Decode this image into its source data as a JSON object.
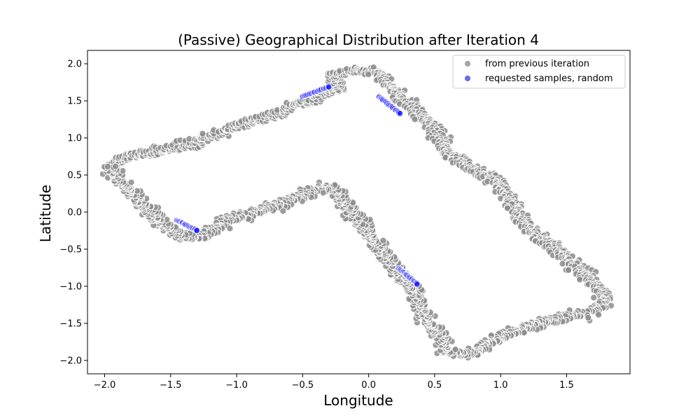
{
  "chart_data": {
    "type": "scatter",
    "title": "(Passive) Geographical Distribution after Iteration 4",
    "xlabel": "Longitude",
    "ylabel": "Latitude",
    "xlim": [
      -2.13,
      1.98
    ],
    "ylim": [
      -2.18,
      2.18
    ],
    "xticks": [
      -2.0,
      -1.5,
      -1.0,
      -0.5,
      0.0,
      0.5,
      1.0,
      1.5
    ],
    "xtick_labels": [
      "−2.0",
      "−1.5",
      "−1.0",
      "−0.5",
      "0.0",
      "0.5",
      "1.0",
      "1.5"
    ],
    "yticks": [
      2.0,
      1.5,
      1.0,
      0.5,
      0.0,
      -0.5,
      -1.0,
      -1.5,
      -2.0
    ],
    "ytick_labels": [
      "2.0",
      "1.5",
      "1.0",
      "0.5",
      "0.0",
      "−0.5",
      "−1.0",
      "−1.5",
      "−2.0"
    ],
    "grid": false,
    "legend_position": "top-right",
    "series": [
      {
        "name": "from previous iteration",
        "color": "#8c8c8c",
        "path": [
          [
            -1.95,
            0.62
          ],
          [
            -1.85,
            0.74
          ],
          [
            -1.6,
            0.82
          ],
          [
            -1.3,
            0.95
          ],
          [
            -1.0,
            1.16
          ],
          [
            -0.7,
            1.32
          ],
          [
            -0.4,
            1.55
          ],
          [
            -0.2,
            1.72
          ],
          [
            -0.3,
            1.85
          ],
          [
            -0.1,
            1.92
          ],
          [
            0.05,
            1.9
          ],
          [
            0.15,
            1.72
          ],
          [
            0.35,
            1.4
          ],
          [
            0.5,
            1.1
          ],
          [
            0.6,
            0.8
          ],
          [
            0.75,
            0.62
          ],
          [
            0.95,
            0.45
          ],
          [
            1.05,
            0.22
          ],
          [
            1.2,
            -0.2
          ],
          [
            1.45,
            -0.55
          ],
          [
            1.62,
            -0.8
          ],
          [
            1.75,
            -1.05
          ],
          [
            1.8,
            -1.2
          ],
          [
            1.7,
            -1.35
          ],
          [
            1.5,
            -1.42
          ],
          [
            1.2,
            -1.55
          ],
          [
            0.95,
            -1.72
          ],
          [
            0.8,
            -1.92
          ],
          [
            0.6,
            -1.9
          ],
          [
            0.55,
            -1.7
          ],
          [
            0.45,
            -1.5
          ],
          [
            0.35,
            -1.1
          ],
          [
            0.2,
            -0.75
          ],
          [
            0.05,
            -0.4
          ],
          [
            -0.1,
            -0.05
          ],
          [
            -0.2,
            0.18
          ],
          [
            -0.3,
            0.35
          ],
          [
            -0.5,
            0.22
          ],
          [
            -0.8,
            0.02
          ],
          [
            -1.05,
            -0.1
          ],
          [
            -1.2,
            -0.28
          ],
          [
            -1.4,
            -0.35
          ],
          [
            -1.55,
            -0.18
          ],
          [
            -1.7,
            0.1
          ],
          [
            -1.85,
            0.35
          ],
          [
            -1.95,
            0.55
          ]
        ]
      },
      {
        "name": "requested samples, random",
        "color": "#1f1fff",
        "clusters": [
          {
            "from": [
              -0.5,
              1.56
            ],
            "to": [
              -0.3,
              1.69
            ]
          },
          {
            "from": [
              0.08,
              1.55
            ],
            "to": [
              0.24,
              1.33
            ]
          },
          {
            "from": [
              -1.45,
              -0.11
            ],
            "to": [
              -1.3,
              -0.25
            ]
          },
          {
            "from": [
              0.23,
              -0.76
            ],
            "to": [
              0.37,
              -0.97
            ]
          }
        ]
      }
    ]
  }
}
